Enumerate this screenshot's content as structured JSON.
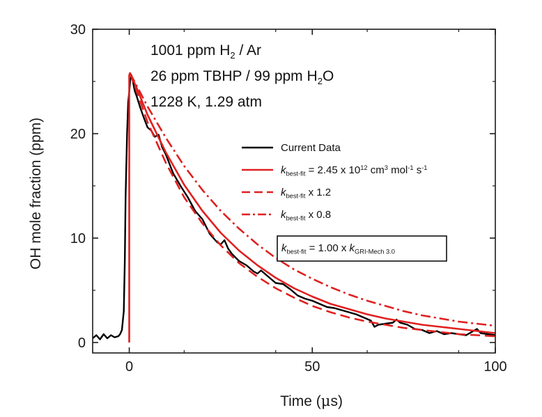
{
  "chart_data": {
    "type": "line",
    "xlabel": {
      "prefix": "Time (",
      "symbol": "μ",
      "suffix": "s)"
    },
    "ylabel": "OH mole  fraction (ppm)",
    "xlim": [
      -10,
      100
    ],
    "ylim": [
      -1,
      30
    ],
    "x_ticks": [
      0,
      50,
      100
    ],
    "y_ticks": [
      0,
      10,
      20,
      30
    ],
    "annotations": [
      {
        "segments": [
          {
            "t": "1001 ppm H"
          },
          {
            "t": "2",
            "sub": true
          },
          {
            "t": " / Ar"
          }
        ]
      },
      {
        "segments": [
          {
            "t": "26 ppm TBHP / 99 ppm H"
          },
          {
            "t": "2",
            "sub": true
          },
          {
            "t": "O"
          }
        ]
      },
      {
        "segments": [
          {
            "t": "1228 K, 1.29 atm"
          }
        ]
      }
    ],
    "legend_position": "center-right",
    "legend": [
      {
        "color": "#000000",
        "dash": "solid",
        "segments": [
          {
            "t": "Current Data"
          }
        ]
      },
      {
        "color": "#e02020",
        "dash": "solid",
        "segments": [
          {
            "t": "k",
            "italic": true
          },
          {
            "t": "best-fit",
            "sub": true
          },
          {
            "t": " = 2.45 x 10"
          },
          {
            "t": "12",
            "sup": true
          },
          {
            "t": " cm"
          },
          {
            "t": "3",
            "sup": true
          },
          {
            "t": " mol"
          },
          {
            "t": "-1",
            "sup": true
          },
          {
            "t": " s"
          },
          {
            "t": "-1",
            "sup": true
          }
        ]
      },
      {
        "color": "#e02020",
        "dash": "dashed",
        "segments": [
          {
            "t": "k",
            "italic": true
          },
          {
            "t": "best-fit",
            "sub": true
          },
          {
            "t": " x 1.2"
          }
        ]
      },
      {
        "color": "#e02020",
        "dash": "dashdot",
        "segments": [
          {
            "t": "k",
            "italic": true
          },
          {
            "t": "best-fit",
            "sub": true
          },
          {
            "t": " x 0.8"
          }
        ]
      }
    ],
    "boxed_note": {
      "segments": [
        {
          "t": "k",
          "italic": true
        },
        {
          "t": "best-fit",
          "sub": true
        },
        {
          "t": " = 1.00 x "
        },
        {
          "t": "k",
          "italic": true
        },
        {
          "t": "GRI-Mech 3.0",
          "sub": true
        }
      ]
    },
    "series": [
      {
        "name": "Current Data",
        "color": "#000000",
        "dash": "solid",
        "x": [
          -10,
          -9,
          -8,
          -7,
          -6,
          -5,
          -4,
          -3,
          -2.5,
          -2,
          -1.5,
          -1.2,
          -1,
          -0.6,
          -0.3,
          0,
          0.3,
          0.6,
          1,
          1.5,
          2,
          3,
          4,
          5,
          6,
          7,
          8,
          9,
          10,
          12,
          14,
          16,
          18,
          20,
          22,
          24,
          25,
          26,
          27,
          28,
          30,
          32,
          34,
          35,
          36,
          38,
          40,
          42,
          44,
          46,
          48,
          50,
          52,
          54,
          56,
          58,
          60,
          62,
          64,
          66,
          67,
          68,
          70,
          72,
          73,
          74,
          76,
          78,
          80,
          82,
          84,
          86,
          88,
          90,
          92,
          94,
          95,
          96,
          98,
          100
        ],
        "y": [
          0.4,
          0.7,
          0.3,
          0.8,
          0.4,
          0.7,
          0.5,
          0.6,
          0.8,
          1.2,
          3,
          8,
          14,
          20,
          23,
          24,
          25.2,
          25.6,
          25,
          24.1,
          23.6,
          22.5,
          21.5,
          20.6,
          20.3,
          19.7,
          19.9,
          18.7,
          18,
          16.2,
          15,
          13.9,
          12.6,
          11.8,
          10.4,
          9.6,
          9.4,
          9.8,
          9,
          8.5,
          7.8,
          7.4,
          6.8,
          6.6,
          6.9,
          6.3,
          5.7,
          5.6,
          5.1,
          4.5,
          4.2,
          4,
          3.7,
          3.4,
          3.3,
          3.1,
          2.9,
          2.7,
          2.4,
          2.1,
          1.5,
          1.7,
          1.8,
          1.9,
          2.2,
          1.9,
          1.7,
          1.3,
          1.2,
          0.9,
          1.1,
          0.8,
          0.9,
          0.8,
          0.7,
          1.1,
          1.3,
          0.9,
          0.8,
          0.7
        ]
      },
      {
        "name": "k best-fit = 2.45 x 10^12 cm^3 mol^-1 s^-1",
        "color": "#e02020",
        "dash": "solid",
        "x": [
          0,
          0,
          0.2,
          2,
          5,
          10,
          15,
          20,
          25,
          30,
          35,
          40,
          45,
          50,
          55,
          60,
          65,
          70,
          75,
          80,
          85,
          90,
          95,
          100
        ],
        "y": [
          0,
          25.6,
          25.8,
          24.4,
          21.8,
          18.2,
          15.1,
          12.6,
          10.5,
          8.8,
          7.4,
          6.2,
          5.2,
          4.4,
          3.7,
          3.2,
          2.7,
          2.3,
          2,
          1.7,
          1.5,
          1.3,
          1.1,
          0.9
        ]
      },
      {
        "name": "k best-fit x 1.2",
        "color": "#e02020",
        "dash": "dashed",
        "x": [
          0.2,
          2,
          5,
          10,
          15,
          20,
          25,
          30,
          35,
          40,
          45,
          50,
          55,
          60,
          65,
          70,
          75,
          80,
          85,
          90,
          95,
          100
        ],
        "y": [
          25.8,
          24.1,
          21.1,
          17.2,
          13.9,
          11.4,
          9.3,
          7.6,
          6.3,
          5.2,
          4.3,
          3.5,
          2.9,
          2.4,
          2,
          1.7,
          1.4,
          1.2,
          1,
          0.8,
          0.7,
          0.6
        ]
      },
      {
        "name": "k best-fit x 0.8",
        "color": "#e02020",
        "dash": "dashdot",
        "x": [
          0.2,
          2,
          5,
          10,
          15,
          20,
          25,
          30,
          35,
          40,
          45,
          50,
          55,
          60,
          65,
          70,
          75,
          80,
          85,
          90,
          95,
          100
        ],
        "y": [
          25.8,
          24.6,
          22.6,
          19.6,
          16.9,
          14.6,
          12.6,
          10.9,
          9.4,
          8.1,
          7,
          6.1,
          5.3,
          4.6,
          4,
          3.5,
          3,
          2.6,
          2.3,
          2,
          1.8,
          1.6
        ]
      }
    ]
  }
}
